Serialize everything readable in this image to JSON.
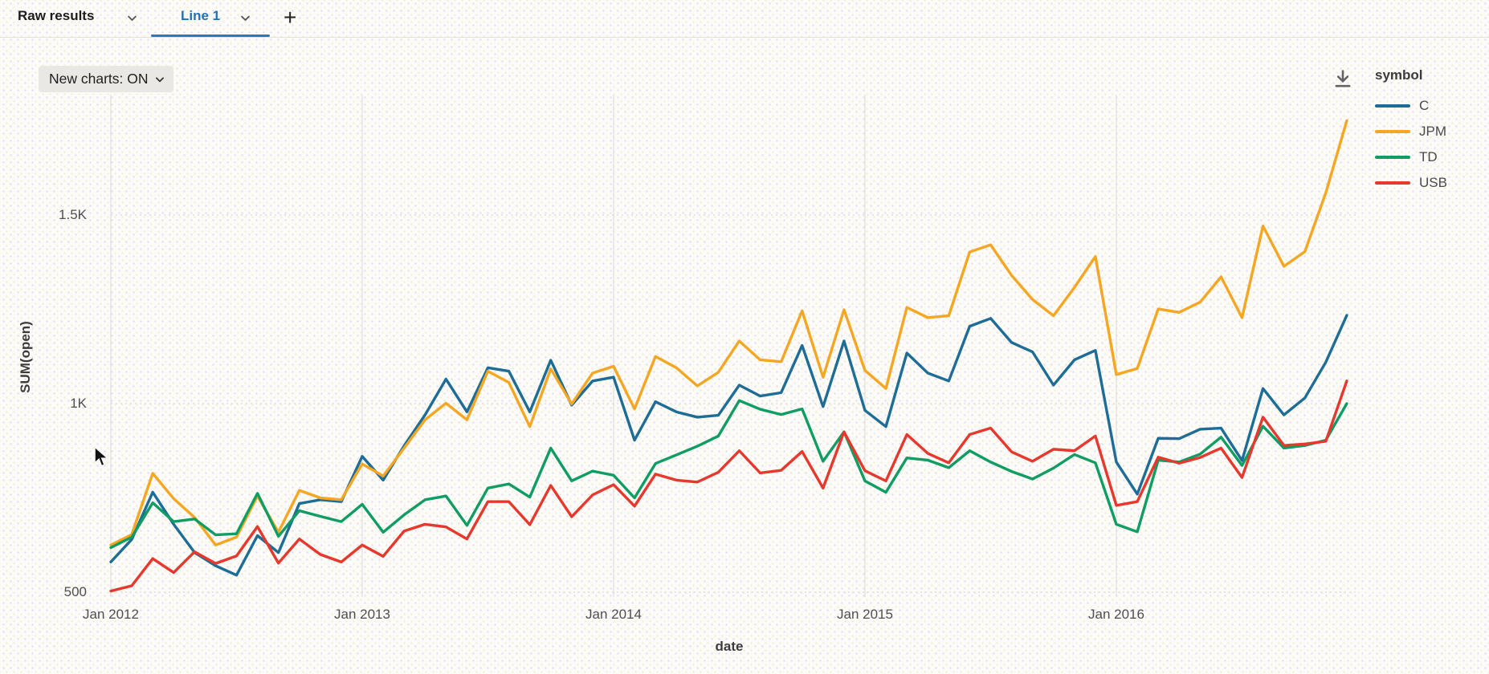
{
  "tabs": {
    "raw_results_label": "Raw results",
    "active_tab_label": "Line 1",
    "add_tab_label": "+"
  },
  "toolbar": {
    "new_charts_label": "New charts: ON"
  },
  "icons": {
    "chevron": "chevron-down",
    "download": "download-to-line",
    "cursor": "mouse-pointer"
  },
  "colors": {
    "accent_tab": "#2272b8",
    "grid_solid": "#e4e2de",
    "grid_dashed": "#d8d8e2",
    "series_C": "#1d6d96",
    "series_JPM": "#f5a623",
    "series_TD": "#0f9d63",
    "series_USB": "#e6382c"
  },
  "legend": {
    "title": "symbol"
  },
  "axes": {
    "y_title": "SUM(open)",
    "x_title": "date",
    "y_ticks": [
      {
        "value": 500,
        "label": "500"
      },
      {
        "value": 1000,
        "label": "1K"
      },
      {
        "value": 1500,
        "label": "1.5K"
      }
    ],
    "x_ticks": [
      {
        "month_index": 0,
        "label": "Jan 2012"
      },
      {
        "month_index": 12,
        "label": "Jan 2013"
      },
      {
        "month_index": 24,
        "label": "Jan 2014"
      },
      {
        "month_index": 36,
        "label": "Jan 2015"
      },
      {
        "month_index": 48,
        "label": "Jan 2016"
      }
    ]
  },
  "chart_data": {
    "type": "line",
    "title": "",
    "xlabel": "date",
    "ylabel": "SUM(open)",
    "x_start": "Jan 2012",
    "x_interval": "monthly",
    "x_end": "Dec 2016",
    "ylim": [
      450,
      1850
    ],
    "legend_title": "symbol",
    "legend_position": "right",
    "grid": "horizontal-dashed, vertical-solid-yearly",
    "series": [
      {
        "name": "C",
        "color": "#1d6d96",
        "values": [
          580,
          640,
          765,
          680,
          605,
          570,
          545,
          650,
          605,
          735,
          745,
          740,
          860,
          797,
          888,
          970,
          1065,
          978,
          1095,
          1086,
          978,
          1115,
          996,
          1060,
          1070,
          903,
          1005,
          978,
          964,
          969,
          1049,
          1020,
          1029,
          1154,
          992,
          1166,
          982,
          939,
          1134,
          1081,
          1060,
          1205,
          1226,
          1162,
          1137,
          1049,
          1116,
          1141,
          845,
          760,
          908,
          907,
          932,
          935,
          849,
          1040,
          970,
          1015,
          1110,
          1234
        ]
      },
      {
        "name": "JPM",
        "color": "#f5a623",
        "values": [
          625,
          653,
          815,
          748,
          698,
          625,
          646,
          755,
          659,
          770,
          750,
          745,
          840,
          808,
          882,
          957,
          1001,
          957,
          1086,
          1056,
          939,
          1092,
          999,
          1081,
          1099,
          986,
          1125,
          1095,
          1047,
          1083,
          1166,
          1116,
          1111,
          1246,
          1070,
          1249,
          1088,
          1040,
          1255,
          1228,
          1233,
          1402,
          1421,
          1340,
          1276,
          1233,
          1308,
          1390,
          1077,
          1093,
          1251,
          1242,
          1269,
          1336,
          1228,
          1471,
          1364,
          1403,
          1559,
          1750
        ]
      },
      {
        "name": "TD",
        "color": "#0f9d63",
        "values": [
          618,
          646,
          737,
          687,
          694,
          652,
          655,
          762,
          648,
          716,
          701,
          687,
          733,
          659,
          705,
          745,
          755,
          677,
          776,
          787,
          752,
          882,
          795,
          821,
          810,
          750,
          841,
          864,
          887,
          914,
          1008,
          985,
          971,
          986,
          847,
          925,
          795,
          765,
          856,
          850,
          830,
          875,
          845,
          820,
          800,
          829,
          865,
          843,
          680,
          660,
          850,
          845,
          866,
          911,
          836,
          940,
          882,
          889,
          903,
          1000
        ]
      },
      {
        "name": "USB",
        "color": "#e6382c",
        "values": [
          503,
          517,
          589,
          552,
          607,
          576,
          596,
          674,
          577,
          641,
          600,
          580,
          625,
          595,
          662,
          680,
          673,
          641,
          740,
          740,
          679,
          783,
          700,
          758,
          785,
          728,
          813,
          797,
          792,
          818,
          875,
          816,
          823,
          873,
          776,
          925,
          822,
          795,
          918,
          868,
          843,
          918,
          935,
          872,
          847,
          879,
          875,
          914,
          730,
          740,
          858,
          842,
          857,
          882,
          804,
          964,
          889,
          893,
          900,
          1060
        ]
      }
    ]
  }
}
